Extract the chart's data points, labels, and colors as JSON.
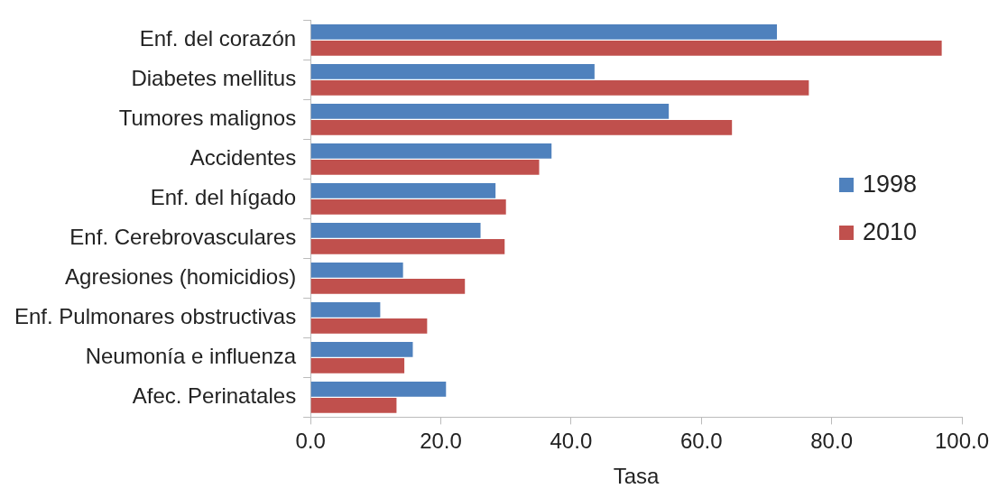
{
  "chart_data": {
    "type": "bar",
    "orientation": "horizontal",
    "xlabel": "Tasa",
    "categories": [
      "Enf. del corazón",
      "Diabetes mellitus",
      "Tumores malignos",
      "Accidentes",
      "Enf. del hígado",
      "Enf. Cerebrovasculares",
      "Agresiones (homicidios)",
      "Enf. Pulmonares obstructivas",
      "Neumonía e influenza",
      "Afec. Perinatales"
    ],
    "series": [
      {
        "name": "1998",
        "color": "#4f81bd",
        "values": [
          71.6,
          43.6,
          55.0,
          37.0,
          28.4,
          26.1,
          14.2,
          10.7,
          15.7,
          20.8
        ]
      },
      {
        "name": "2010",
        "color": "#c0504d",
        "values": [
          96.9,
          76.5,
          64.7,
          35.1,
          30.0,
          29.8,
          23.7,
          17.9,
          14.4,
          13.2
        ]
      }
    ],
    "xlim": [
      0,
      100
    ],
    "xticks": [
      {
        "value": 0,
        "label": "0.0"
      },
      {
        "value": 20,
        "label": "20.0"
      },
      {
        "value": 40,
        "label": "40.0"
      },
      {
        "value": 60,
        "label": "60.0"
      },
      {
        "value": 80,
        "label": "80.0"
      },
      {
        "value": 100,
        "label": "100.0"
      }
    ],
    "grid": false,
    "legend": "right"
  }
}
